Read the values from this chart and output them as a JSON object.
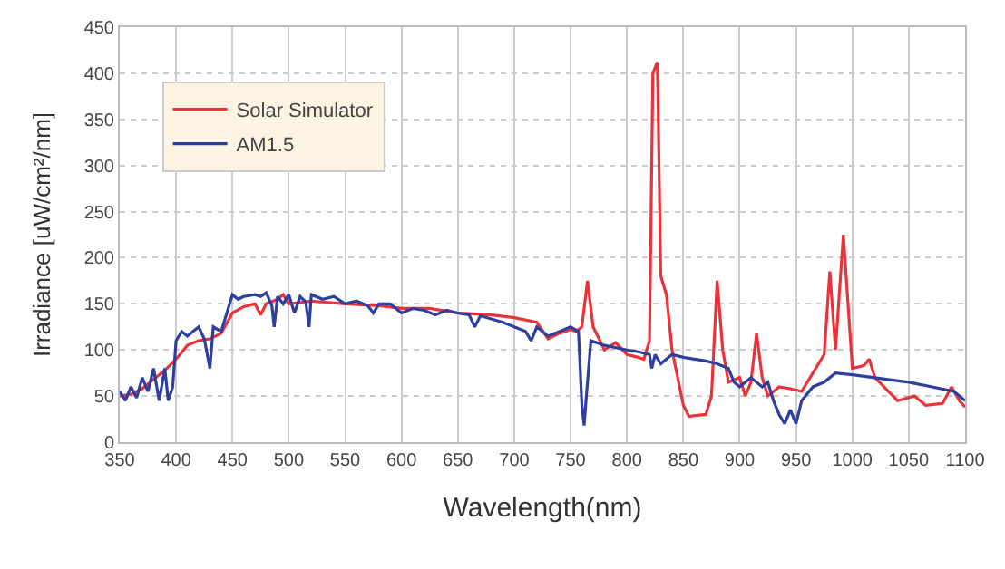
{
  "chart_data": {
    "type": "line",
    "xlabel": "Wavelength(nm)",
    "ylabel": "Irradiance [uW/cm²/nm]",
    "xlim": [
      350,
      1100
    ],
    "xticks": [
      350,
      400,
      450,
      500,
      550,
      600,
      650,
      700,
      750,
      800,
      850,
      900,
      950,
      1000,
      1050,
      1100
    ],
    "ylim": [
      0,
      450
    ],
    "yticks": [
      0,
      50,
      100,
      150,
      200,
      250,
      300,
      350,
      400,
      450
    ],
    "grid": true,
    "legend": "top left",
    "marker": "none",
    "line_style": "solid",
    "series": [
      {
        "name": "Solar Simulator",
        "color": "#e8333a",
        "x": [
          350,
          360,
          370,
          380,
          390,
          400,
          410,
          420,
          430,
          440,
          450,
          460,
          470,
          475,
          480,
          490,
          495,
          500,
          520,
          550,
          580,
          600,
          625,
          650,
          680,
          700,
          720,
          730,
          740,
          750,
          755,
          760,
          765,
          770,
          780,
          790,
          800,
          810,
          815,
          820,
          823,
          827,
          830,
          835,
          840,
          850,
          855,
          870,
          875,
          880,
          885,
          890,
          900,
          905,
          910,
          915,
          920,
          925,
          935,
          945,
          955,
          965,
          975,
          980,
          985,
          992,
          1000,
          1010,
          1015,
          1020,
          1040,
          1055,
          1065,
          1080,
          1088,
          1095,
          1100
        ],
        "values": [
          50,
          52,
          58,
          68,
          78,
          90,
          105,
          110,
          112,
          118,
          140,
          147,
          150,
          138,
          150,
          155,
          160,
          150,
          153,
          150,
          148,
          145,
          145,
          140,
          138,
          135,
          130,
          112,
          118,
          122,
          120,
          125,
          175,
          125,
          100,
          108,
          95,
          92,
          90,
          110,
          400,
          412,
          180,
          160,
          100,
          40,
          28,
          30,
          50,
          175,
          100,
          65,
          70,
          50,
          65,
          118,
          70,
          50,
          60,
          58,
          55,
          75,
          95,
          185,
          100,
          225,
          80,
          83,
          90,
          70,
          45,
          50,
          40,
          42,
          60,
          45,
          38
        ]
      },
      {
        "name": "AM1.5",
        "color": "#2e3f9e",
        "x": [
          350,
          355,
          360,
          365,
          370,
          375,
          380,
          385,
          390,
          393,
          397,
          400,
          405,
          410,
          420,
          425,
          430,
          433,
          440,
          445,
          450,
          455,
          460,
          470,
          475,
          480,
          485,
          487,
          490,
          495,
          500,
          505,
          510,
          515,
          518,
          520,
          530,
          540,
          550,
          560,
          570,
          575,
          580,
          590,
          600,
          610,
          620,
          630,
          640,
          650,
          660,
          665,
          670,
          690,
          700,
          710,
          715,
          720,
          730,
          740,
          750,
          757,
          760,
          762,
          764,
          768,
          780,
          800,
          810,
          820,
          822,
          825,
          830,
          840,
          850,
          860,
          870,
          880,
          890,
          895,
          900,
          910,
          920,
          925,
          930,
          935,
          940,
          945,
          950,
          955,
          965,
          975,
          985,
          1000,
          1050,
          1090,
          1100
        ],
        "values": [
          55,
          45,
          60,
          48,
          70,
          55,
          80,
          45,
          80,
          45,
          60,
          110,
          120,
          115,
          125,
          112,
          80,
          125,
          120,
          140,
          160,
          155,
          158,
          160,
          158,
          162,
          148,
          125,
          158,
          150,
          160,
          140,
          158,
          152,
          125,
          160,
          155,
          158,
          150,
          153,
          148,
          140,
          150,
          150,
          140,
          145,
          143,
          138,
          143,
          140,
          138,
          125,
          137,
          130,
          125,
          120,
          110,
          125,
          115,
          120,
          125,
          120,
          40,
          18,
          50,
          110,
          105,
          100,
          98,
          95,
          80,
          95,
          85,
          95,
          92,
          90,
          88,
          85,
          80,
          65,
          60,
          70,
          60,
          65,
          45,
          30,
          20,
          35,
          20,
          45,
          60,
          65,
          75,
          73,
          65,
          55,
          45
        ]
      }
    ]
  }
}
